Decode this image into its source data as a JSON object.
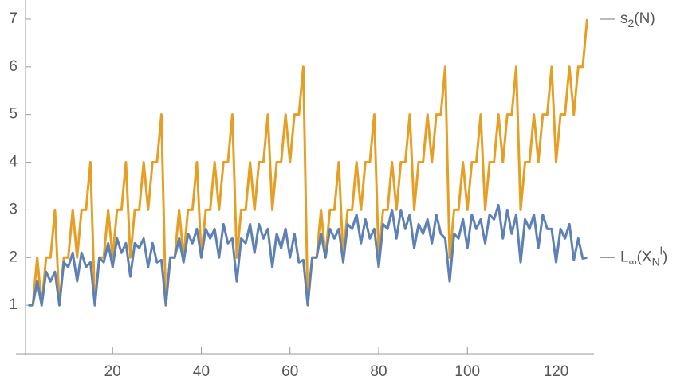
{
  "chart_data": {
    "type": "line",
    "x": [
      1,
      2,
      3,
      4,
      5,
      6,
      7,
      8,
      9,
      10,
      11,
      12,
      13,
      14,
      15,
      16,
      17,
      18,
      19,
      20,
      21,
      22,
      23,
      24,
      25,
      26,
      27,
      28,
      29,
      30,
      31,
      32,
      33,
      34,
      35,
      36,
      37,
      38,
      39,
      40,
      41,
      42,
      43,
      44,
      45,
      46,
      47,
      48,
      49,
      50,
      51,
      52,
      53,
      54,
      55,
      56,
      57,
      58,
      59,
      60,
      61,
      62,
      63,
      64,
      65,
      66,
      67,
      68,
      69,
      70,
      71,
      72,
      73,
      74,
      75,
      76,
      77,
      78,
      79,
      80,
      81,
      82,
      83,
      84,
      85,
      86,
      87,
      88,
      89,
      90,
      91,
      92,
      93,
      94,
      95,
      96,
      97,
      98,
      99,
      100,
      101,
      102,
      103,
      104,
      105,
      106,
      107,
      108,
      109,
      110,
      111,
      112,
      113,
      114,
      115,
      116,
      117,
      118,
      119,
      120,
      121,
      122,
      123,
      124,
      125,
      126,
      127
    ],
    "series": [
      {
        "name": "s_2(N)",
        "color": "#E69F25",
        "values": [
          1,
          1,
          2,
          1,
          2,
          2,
          3,
          1,
          2,
          2,
          3,
          2,
          3,
          3,
          4,
          1,
          2,
          2,
          3,
          2,
          3,
          3,
          4,
          2,
          3,
          3,
          4,
          3,
          4,
          4,
          5,
          1,
          2,
          2,
          3,
          2,
          3,
          3,
          4,
          2,
          3,
          3,
          4,
          3,
          4,
          4,
          5,
          2,
          3,
          3,
          4,
          3,
          4,
          4,
          5,
          3,
          4,
          4,
          5,
          4,
          5,
          5,
          6,
          1,
          2,
          2,
          3,
          2,
          3,
          3,
          4,
          2,
          3,
          3,
          4,
          3,
          4,
          4,
          5,
          2,
          3,
          3,
          4,
          3,
          4,
          4,
          5,
          3,
          4,
          4,
          5,
          4,
          5,
          5,
          6,
          2,
          3,
          3,
          4,
          3,
          4,
          4,
          5,
          3,
          4,
          4,
          5,
          4,
          5,
          5,
          6,
          3,
          4,
          4,
          5,
          4,
          5,
          5,
          6,
          4,
          5,
          5,
          6,
          5,
          6,
          6,
          7
        ]
      },
      {
        "name": "L_∞(X_N^l)",
        "color": "#5E81B5",
        "values": [
          1,
          1,
          1.5,
          1,
          1.7,
          1.5,
          1.7,
          1,
          1.9,
          1.8,
          2.1,
          1.5,
          2.1,
          1.8,
          1.9,
          1,
          2,
          1.9,
          2.3,
          1.8,
          2.4,
          2.1,
          2.3,
          1.6,
          2.3,
          2.2,
          2.4,
          1.8,
          2.3,
          1.9,
          1.95,
          1,
          2,
          2,
          2.4,
          1.9,
          2.5,
          2.3,
          2.6,
          2,
          2.6,
          2.4,
          2.6,
          2,
          2.7,
          2.3,
          2.4,
          1.5,
          2.4,
          2.3,
          2.7,
          2.1,
          2.7,
          2.4,
          2.6,
          1.8,
          2.5,
          2.2,
          2.6,
          2,
          2.5,
          1.9,
          1.95,
          1,
          2,
          2,
          2.5,
          2,
          2.6,
          2.4,
          2.6,
          1.9,
          2.7,
          2.6,
          2.9,
          2.3,
          2.8,
          2.4,
          2.6,
          1.8,
          2.7,
          2.6,
          3,
          2.4,
          3,
          2.6,
          2.9,
          2.2,
          2.7,
          2.5,
          2.8,
          2.3,
          2.9,
          2.5,
          2.4,
          1.5,
          2.5,
          2.4,
          2.8,
          2.2,
          2.9,
          2.6,
          2.8,
          2.3,
          2.9,
          2.8,
          3.1,
          2.4,
          3,
          2.5,
          2.9,
          1.9,
          2.8,
          2.6,
          2.9,
          2.2,
          2.9,
          2.6,
          2.6,
          1.9,
          2.6,
          2.4,
          2.7,
          1.95,
          2.4,
          1.98,
          2
        ]
      }
    ],
    "xlim": [
      0,
      128
    ],
    "ylim": [
      0,
      7.4
    ],
    "xticks": [
      20,
      40,
      60,
      80,
      100,
      120
    ],
    "yticks": [
      1,
      2,
      3,
      4,
      5,
      6,
      7
    ],
    "grid": false
  }
}
